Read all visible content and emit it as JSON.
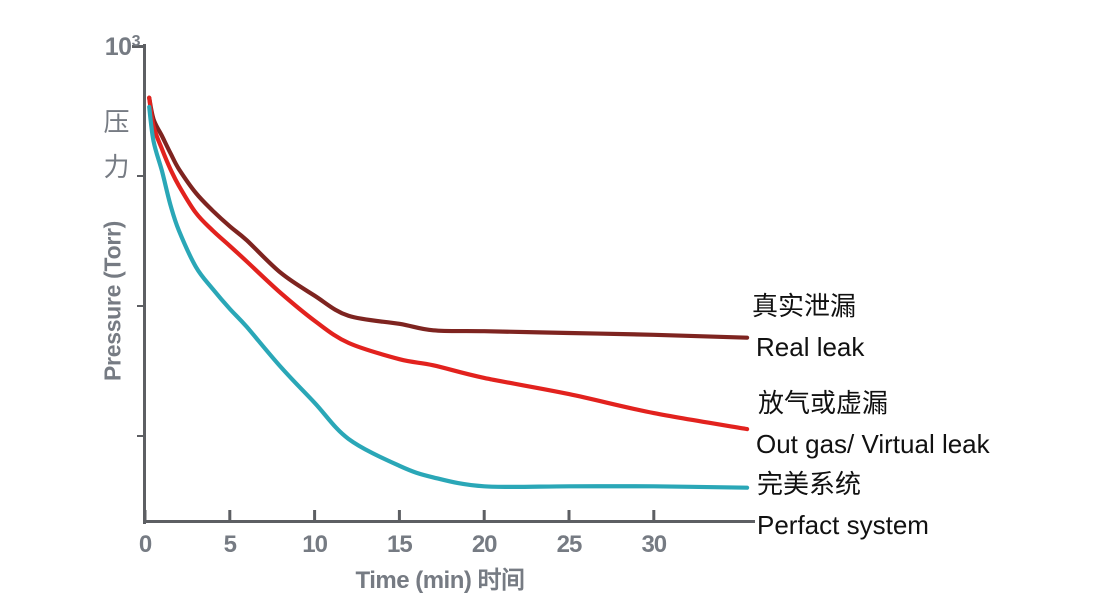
{
  "chart_data": {
    "type": "line",
    "title": "",
    "xlabel": "Time (min) 时间",
    "ylabel": "Pressure (Torr)",
    "x_axis": {
      "label": "Time (min) 时间",
      "ticks": [
        0,
        5,
        10,
        15,
        20,
        25,
        30
      ],
      "range": [
        0,
        36
      ],
      "unit": "min"
    },
    "y_axis": {
      "label_cn": "压 力",
      "label_en": "Pressure (Torr)",
      "scale": "log",
      "top_tick_base": "10",
      "top_tick_exp": "3",
      "top_value": 1000,
      "unlabeled_decade_ticks": [
        100,
        10,
        1
      ]
    },
    "grid": "off",
    "legend_position": "right",
    "series": [
      {
        "id": "real-leak",
        "name_cn": "真实泄漏",
        "name_en": "Real leak",
        "color": "#7e2420",
        "t_min": [
          0.25,
          0.5,
          1,
          1.5,
          2,
          3,
          4,
          5,
          6,
          8,
          10,
          12,
          15,
          17,
          20,
          25,
          30,
          35.5
        ],
        "pressure_torr": [
          400,
          274,
          203,
          150,
          113,
          74,
          54,
          41,
          32,
          18,
          12,
          8.4,
          7.3,
          6.5,
          6.4,
          6.2,
          6.0,
          5.7
        ]
      },
      {
        "id": "out-gas-virtual-leak",
        "name_cn": "放气或虚漏",
        "name_en": "Out gas/ Virtual leak",
        "color": "#e2221e",
        "t_min": [
          0.25,
          0.5,
          1,
          1.5,
          2,
          3,
          4,
          5,
          6,
          8,
          10,
          12,
          15,
          17,
          20,
          25,
          30,
          35.5
        ],
        "pressure_torr": [
          400,
          242,
          161,
          113,
          84,
          52,
          38,
          29,
          22,
          12.6,
          7.7,
          5.2,
          3.9,
          3.5,
          2.8,
          2.1,
          1.5,
          1.13
        ]
      },
      {
        "id": "perfect-system",
        "name_cn": "完美系统",
        "name_en": "Perfact system",
        "color": "#2aa7b7",
        "t_min": [
          0.25,
          0.5,
          1,
          1.5,
          2,
          3,
          4,
          5,
          6,
          8,
          10,
          12,
          15,
          17,
          20,
          25,
          30,
          35.5
        ],
        "pressure_torr": [
          340,
          186,
          109,
          60,
          38,
          20,
          13.5,
          9.5,
          6.9,
          3.4,
          1.8,
          0.95,
          0.59,
          0.48,
          0.41,
          0.41,
          0.41,
          0.4
        ]
      }
    ],
    "colors": {
      "axis": "#5d5f63",
      "axis_label": "#767b83",
      "legend_text": "#111111",
      "background": "#ffffff"
    }
  }
}
